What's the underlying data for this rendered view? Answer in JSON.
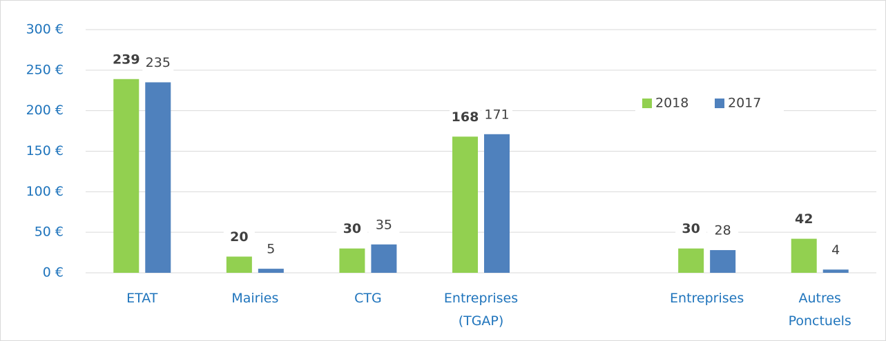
{
  "chart_data": {
    "type": "bar",
    "categories": [
      "ETAT",
      "Mairies",
      "CTG",
      "Entreprises\n(TGAP)",
      null,
      "Entreprises",
      "Autres\nPonctuels"
    ],
    "series": [
      {
        "name": "2018",
        "color": "#92d050",
        "values": [
          239,
          20,
          30,
          168,
          null,
          30,
          42
        ]
      },
      {
        "name": "2017",
        "color": "#4f81bd",
        "values": [
          235,
          5,
          35,
          171,
          null,
          28,
          4
        ]
      }
    ],
    "ylim": [
      0,
      300
    ],
    "yticks": [
      {
        "value": 0,
        "label": "0 €"
      },
      {
        "value": 50,
        "label": "50 €"
      },
      {
        "value": 100,
        "label": "100 €"
      },
      {
        "value": 150,
        "label": "150 €"
      },
      {
        "value": 200,
        "label": "200 €"
      },
      {
        "value": 250,
        "label": "250 €"
      },
      {
        "value": 300,
        "label": "300 €"
      }
    ],
    "grid": true,
    "legend": "upper right"
  }
}
